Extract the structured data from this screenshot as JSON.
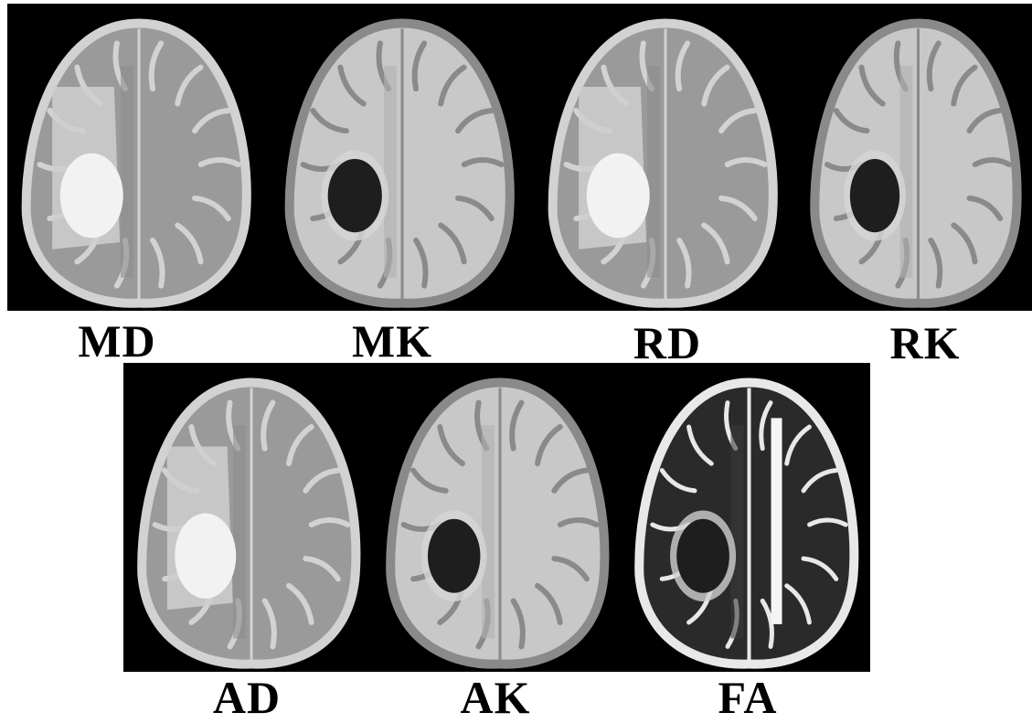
{
  "figure": {
    "top_row": [
      {
        "label": "MD",
        "map": "diffusion",
        "lesion": "bright"
      },
      {
        "label": "MK",
        "map": "kurtosis",
        "lesion": "dark"
      },
      {
        "label": "RD",
        "map": "diffusion",
        "lesion": "bright"
      },
      {
        "label": "RK",
        "map": "kurtosis",
        "lesion": "dark"
      }
    ],
    "bottom_row": [
      {
        "label": "AD",
        "map": "diffusion",
        "lesion": "bright"
      },
      {
        "label": "AK",
        "map": "kurtosis",
        "lesion": "dark"
      },
      {
        "label": "FA",
        "map": "anisotropy",
        "lesion": "dark"
      }
    ],
    "colors": {
      "background": "#000000",
      "page": "#ffffff",
      "label": "#000000"
    }
  }
}
